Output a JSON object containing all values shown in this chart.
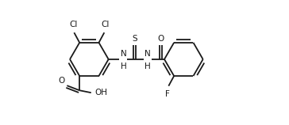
{
  "bg_color": "#ffffff",
  "line_color": "#1a1a1a",
  "line_width": 1.3,
  "font_size": 7.5,
  "fig_width": 3.64,
  "fig_height": 1.58,
  "dpi": 100,
  "xlim": [
    0.0,
    10.5
  ],
  "ylim": [
    0.3,
    5.3
  ]
}
